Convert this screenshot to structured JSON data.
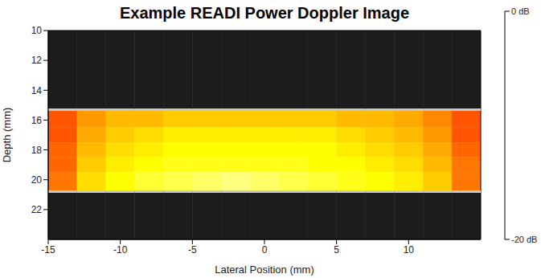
{
  "chart_data": {
    "type": "heatmap",
    "title": "Example READI Power Doppler Image",
    "x_label": "Lateral Position (mm)",
    "y_label": "Depth (mm)",
    "xlim": [
      -15,
      15
    ],
    "xticks": [
      -15,
      -10,
      -5,
      0,
      5,
      10
    ],
    "ylim": [
      10,
      24
    ],
    "yticks": [
      10,
      12,
      14,
      16,
      18,
      20,
      22
    ],
    "x_edges": [
      -15,
      -13,
      -11,
      -9,
      -7,
      -5,
      -3,
      -1,
      1,
      3,
      5,
      7,
      9,
      11,
      13,
      15
    ],
    "y_edges": [
      10,
      15.3,
      16.5,
      17.5,
      18.5,
      19.5,
      20.8,
      24
    ],
    "cells": [
      [
        null,
        null,
        null,
        null,
        null,
        null,
        null,
        null,
        null,
        null,
        null,
        null,
        null,
        null,
        null
      ],
      [
        -10,
        -8,
        -7,
        -7,
        -6.5,
        -6.5,
        -6.5,
        -6.5,
        -6.5,
        -6.5,
        -7,
        -7,
        -7.5,
        -8.5,
        -10
      ],
      [
        -10,
        -7.5,
        -6.5,
        -6,
        -5.5,
        -5.5,
        -5.5,
        -5.5,
        -5.5,
        -5.5,
        -6,
        -6.5,
        -7,
        -8,
        -10
      ],
      [
        -9.5,
        -7,
        -6,
        -5.5,
        -5,
        -5,
        -5,
        -5,
        -5,
        -5,
        -5.5,
        -6,
        -6.5,
        -7.5,
        -9.5
      ],
      [
        -9.5,
        -6.5,
        -5.5,
        -5,
        -4.5,
        -4.5,
        -4.5,
        -4.5,
        -4.5,
        -5,
        -5,
        -5.5,
        -6,
        -7,
        -9
      ],
      [
        -9,
        -6,
        -5,
        -4,
        -3.5,
        -3,
        -2.5,
        -3,
        -3.5,
        -4,
        -4.5,
        -5,
        -5.5,
        -6.5,
        -9
      ],
      [
        null,
        null,
        null,
        null,
        null,
        null,
        null,
        null,
        null,
        null,
        null,
        null,
        null,
        null,
        null
      ]
    ],
    "colorbar": {
      "range": [
        -20,
        0
      ],
      "ticks": [
        {
          "value": -20,
          "label": "-20 dB"
        },
        {
          "value": 0,
          "label": "0 dB"
        }
      ]
    }
  }
}
